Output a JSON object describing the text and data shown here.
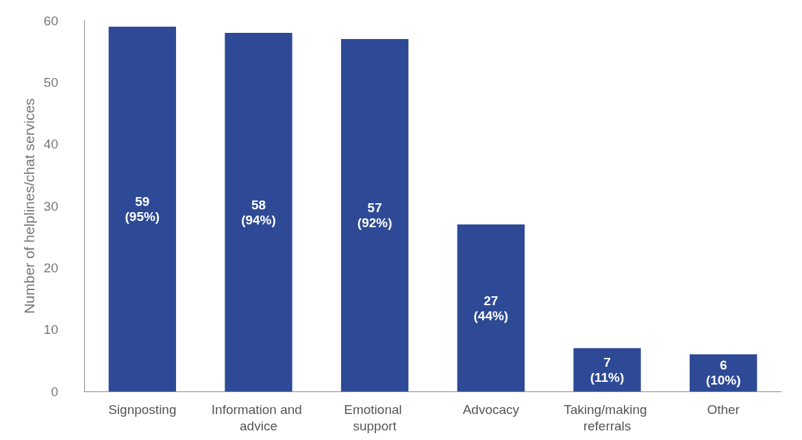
{
  "chart_data": {
    "type": "bar",
    "ylabel": "Number of helplines/chat services",
    "categories": [
      "Signposting",
      "Information and advice",
      "Emotional support",
      "Advocacy",
      "Taking/making referrals",
      "Other"
    ],
    "values": [
      59,
      58,
      57,
      27,
      7,
      6
    ],
    "value_labels": [
      "59\n(95%)",
      "58\n(94%)",
      "57\n(92%)",
      "27\n(44%)",
      "7\n(11%)",
      "6\n(10%)"
    ],
    "color": "#2e4a96",
    "ylim": [
      0,
      60
    ],
    "yticks": [
      0,
      10,
      20,
      30,
      40,
      50,
      60
    ]
  }
}
